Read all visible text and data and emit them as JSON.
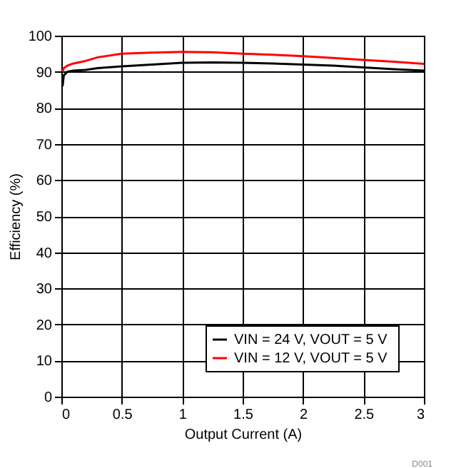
{
  "chart_data": {
    "type": "line",
    "xlabel": "Output Current (A)",
    "ylabel": "Efficiency (%)",
    "xlim": [
      0,
      3
    ],
    "xticks": [
      0,
      0.5,
      1,
      1.5,
      2,
      2.5,
      3
    ],
    "ylim": [
      0,
      100
    ],
    "yticks": [
      0,
      10,
      20,
      30,
      40,
      50,
      60,
      70,
      80,
      90,
      100
    ],
    "grid": true,
    "legend": "bottom right",
    "line_style": "solid",
    "annotations": [
      "D001"
    ],
    "series": [
      {
        "name": "VIN =  24 V, VOUT = 5 V",
        "color": "#000000",
        "x": [
          0.01,
          0.02,
          0.05,
          0.1,
          0.2,
          0.3,
          0.5,
          0.75,
          1,
          1.25,
          1.5,
          1.75,
          2,
          2.25,
          2.5,
          2.75,
          3
        ],
        "values": [
          86,
          89,
          90,
          90.3,
          90.5,
          91,
          91.5,
          92,
          92.5,
          92.6,
          92.5,
          92.3,
          92,
          91.7,
          91.2,
          90.7,
          90.3
        ]
      },
      {
        "name": "VIN =  12 V, VOUT = 5 V",
        "color": "#ff0000",
        "x": [
          0.01,
          0.02,
          0.05,
          0.1,
          0.2,
          0.3,
          0.5,
          0.75,
          1,
          1.25,
          1.5,
          1.75,
          2,
          2.25,
          2.5,
          2.75,
          3
        ],
        "values": [
          90,
          91,
          91.7,
          92.3,
          93,
          94,
          95,
          95.3,
          95.5,
          95.4,
          95,
          94.7,
          94.3,
          93.8,
          93.3,
          92.8,
          92.2
        ]
      }
    ]
  }
}
